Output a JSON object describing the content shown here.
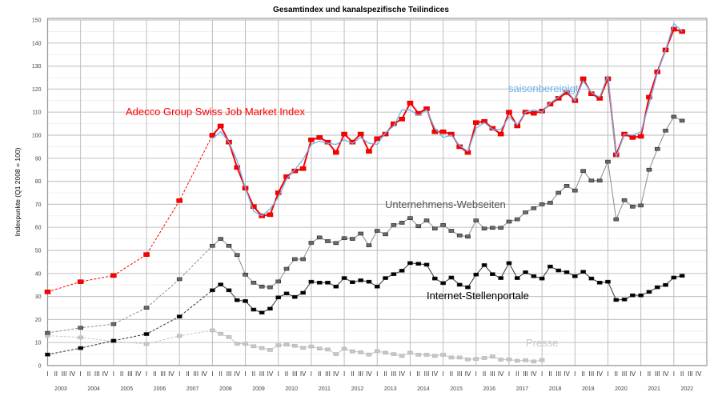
{
  "chart_data": {
    "type": "line",
    "title": "Gesamtindex und kanalspezifische Teilindices",
    "ylabel": "Indexpunkte (Q1 2008 = 100)",
    "xlabel": "",
    "ylim": [
      0,
      150
    ],
    "yticks": [
      0,
      10,
      20,
      30,
      40,
      50,
      60,
      70,
      80,
      90,
      100,
      110,
      120,
      130,
      140,
      150
    ],
    "grid": true,
    "years": [
      "2003",
      "2004",
      "2005",
      "2006",
      "2007",
      "2008",
      "2009",
      "2010",
      "2011",
      "2012",
      "2013",
      "2014",
      "2015",
      "2016",
      "2017",
      "2018",
      "2019",
      "2020",
      "2021",
      "2022"
    ],
    "quarter_labels": [
      "I",
      "II",
      "III",
      "IV"
    ],
    "quarterly_start": "2008 Q1",
    "annual_points_at": [
      "2003 Q1",
      "2004 Q1",
      "2005 Q1",
      "2006 Q1",
      "2007 Q1"
    ],
    "series": [
      {
        "name": "Adecco Group Swiss Job Market Index",
        "color": "#ff0000",
        "marker": true,
        "annual": [
          32,
          36.4,
          39.1,
          48.2,
          71.6
        ],
        "values": [
          100,
          104,
          97,
          86,
          77,
          69,
          65,
          65.5,
          75,
          82,
          84.5,
          85.5,
          98,
          99,
          97,
          92.5,
          100.5,
          97,
          100.5,
          93,
          98.5,
          100.5,
          105,
          107,
          114,
          109.5,
          111.5,
          101.5,
          101.5,
          100.5,
          95,
          92.5,
          105.5,
          106,
          103,
          100.5,
          110,
          104,
          110,
          109.5,
          110.5,
          113.5,
          116,
          118.5,
          115,
          124.5,
          118,
          116,
          124.5,
          91.5,
          100.5,
          99,
          99.5,
          116.5,
          127.5,
          137,
          146,
          145
        ]
      },
      {
        "name": "saisonbereinigt",
        "color": "#6cb4f0",
        "marker": false,
        "annual": [],
        "values": [
          98.5,
          101.5,
          97,
          89,
          77,
          67,
          65,
          68,
          73,
          81,
          85,
          89.5,
          96,
          97.5,
          96.5,
          96,
          98,
          96.5,
          99,
          96.5,
          96,
          101,
          104,
          111,
          111,
          108.5,
          111,
          103,
          99,
          100,
          95.5,
          93,
          103,
          105.5,
          102.5,
          102.5,
          108,
          104.5,
          110,
          111,
          110,
          114,
          116.5,
          119.5,
          115,
          123.5,
          118.5,
          116.5,
          126,
          90.5,
          100.5,
          100,
          101.5,
          113.5,
          127,
          137,
          148.5,
          145
        ]
      },
      {
        "name": "Unternehmens-Webseiten",
        "color": "#666a72",
        "marker": true,
        "annual": [
          14.2,
          16.4,
          18,
          25.1,
          37.5
        ],
        "values": [
          52,
          55,
          52,
          48,
          39.5,
          36,
          34.3,
          34,
          36.5,
          42,
          46.2,
          46.2,
          53.3,
          55.6,
          54,
          53.2,
          55.3,
          55,
          57.3,
          52.2,
          58.5,
          57,
          61,
          62,
          64,
          60.5,
          63,
          59.5,
          61,
          58.5,
          56.5,
          56,
          63,
          59.5,
          59.8,
          59.8,
          62.5,
          63.5,
          66.5,
          68.3,
          70,
          70.7,
          75,
          78,
          76,
          84.5,
          80.3,
          80.3,
          88.5,
          63.5,
          71.8,
          69,
          69.5,
          85,
          94,
          102,
          108,
          106.3
        ]
      },
      {
        "name": "Internet-Stellenportale",
        "color": "#000000",
        "marker": true,
        "annual": [
          4.8,
          7.6,
          10.8,
          13.7,
          21.3
        ],
        "values": [
          32.7,
          35.2,
          32.7,
          28.4,
          28,
          24.3,
          23,
          24.7,
          29.6,
          31.3,
          29.8,
          31.6,
          36.4,
          36,
          36,
          34.3,
          38,
          36.2,
          37,
          36.4,
          34.3,
          38,
          39.7,
          41.2,
          44.5,
          44.2,
          43.8,
          37.8,
          35.8,
          38.2,
          35.1,
          34,
          39.5,
          43.6,
          39.7,
          38,
          44.5,
          38,
          40.5,
          38.8,
          37.8,
          43,
          41.3,
          40.5,
          38.8,
          40.7,
          37.8,
          36,
          36.4,
          28.5,
          28.7,
          30.5,
          30.5,
          32,
          34,
          35,
          38.2,
          39
        ]
      },
      {
        "name": "Presse",
        "color": "#c4c6ca",
        "marker": true,
        "annual": [
          13,
          12.2,
          10.5,
          9.4,
          12.9
        ],
        "values": [
          15.3,
          13.8,
          12.4,
          9.5,
          9.5,
          8.4,
          7.6,
          6.8,
          8.8,
          9.1,
          8.6,
          7.7,
          8.3,
          7.4,
          7,
          5,
          7.3,
          6.2,
          5.8,
          4.8,
          6.3,
          5.6,
          5,
          4.2,
          5.6,
          4.7,
          4.7,
          4.2,
          4.7,
          3.5,
          3.5,
          2.7,
          2.9,
          3.3,
          3.9,
          2.6,
          2.7,
          2.1,
          2.3,
          1.8,
          2.4
        ]
      }
    ]
  }
}
